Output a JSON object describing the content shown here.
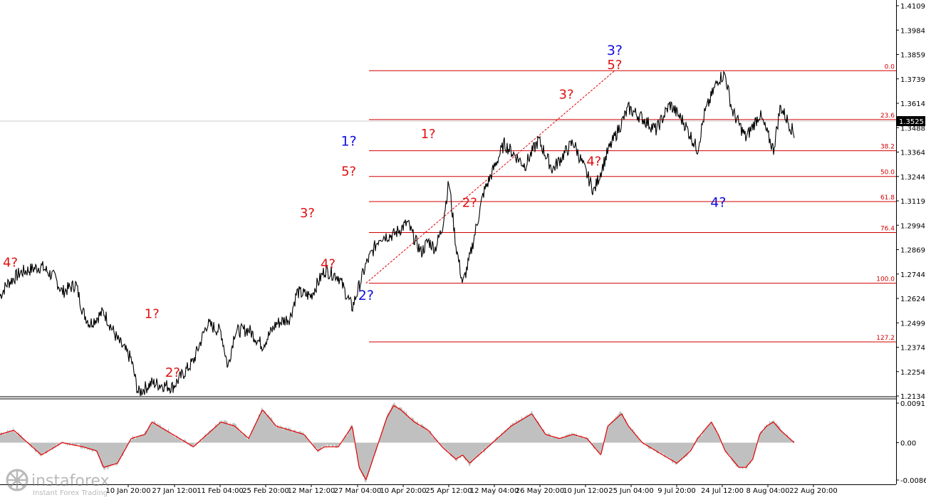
{
  "chart_data": [
    {
      "type": "line",
      "subtype": "price-ohlc",
      "title": "",
      "symbol": "",
      "ylim": [
        1.2134,
        1.4109
      ],
      "y_ticks": [
        "1.4109",
        "1.3984",
        "1.3859",
        "1.3739",
        "1.3614",
        "1.3488",
        "1.3364",
        "1.3244",
        "1.3119",
        "1.2994",
        "1.2869",
        "1.2744",
        "1.2624",
        "1.2499",
        "1.2374",
        "1.2254",
        "1.2134"
      ],
      "x_tick_labels": [
        "10 Jan 20:00",
        "27 Jan 12:00",
        "11 Feb 04:00",
        "25 Feb 20:00",
        "12 Mar 12:00",
        "27 Mar 04:00",
        "10 Apr 20:00",
        "25 Apr 12:00",
        "12 May 04:00",
        "26 May 20:00",
        "10 Jun 12:00",
        "25 Jun 04:00",
        "9 Jul 20:00",
        "24 Jul 12:00",
        "8 Aug 04:00",
        "22 Aug 20:00"
      ],
      "current_price": "1.3525",
      "price_path_index": [
        0,
        1,
        3,
        6,
        8,
        9,
        11,
        12,
        13,
        15,
        17,
        19,
        20,
        22,
        25,
        28,
        30,
        32,
        33,
        34,
        36,
        38,
        40,
        42,
        43,
        45,
        47,
        49,
        51,
        53,
        55,
        57,
        59,
        60,
        61,
        62,
        63,
        64,
        65,
        66,
        67,
        68,
        70,
        73,
        76,
        78,
        80,
        83,
        86,
        88,
        91,
        93,
        95,
        97,
        99,
        101,
        102,
        103,
        104,
        105,
        106,
        108,
        110,
        112,
        113,
        115
      ],
      "price_path_close": [
        1.264,
        1.27,
        1.276,
        1.279,
        1.273,
        1.266,
        1.27,
        1.256,
        1.25,
        1.256,
        1.242,
        1.232,
        1.215,
        1.22,
        1.218,
        1.231,
        1.25,
        1.246,
        1.228,
        1.246,
        1.247,
        1.239,
        1.25,
        1.253,
        1.266,
        1.264,
        1.277,
        1.274,
        1.258,
        1.28,
        1.294,
        1.295,
        1.301,
        1.293,
        1.286,
        1.292,
        1.288,
        1.298,
        1.322,
        1.29,
        1.27,
        1.283,
        1.316,
        1.341,
        1.33,
        1.343,
        1.328,
        1.342,
        1.317,
        1.337,
        1.359,
        1.354,
        1.348,
        1.361,
        1.352,
        1.338,
        1.356,
        1.365,
        1.374,
        1.376,
        1.358,
        1.344,
        1.356,
        1.338,
        1.36,
        1.346
      ],
      "waves": [
        {
          "label": "4?",
          "color": "red",
          "index": 1.5,
          "price": 1.276,
          "pos": "above"
        },
        {
          "label": "1?",
          "color": "red",
          "index": 22,
          "price": 1.25,
          "pos": "above"
        },
        {
          "label": "2?",
          "color": "red",
          "index": 25,
          "price": 1.231,
          "pos": "below"
        },
        {
          "label": "3?",
          "color": "red",
          "index": 44.5,
          "price": 1.301,
          "pos": "above"
        },
        {
          "label": "4?",
          "color": "red",
          "index": 47.5,
          "price": 1.286,
          "pos": "below"
        },
        {
          "label": "1?",
          "color": "blue",
          "index": 50.5,
          "price": 1.33,
          "pos": "above2"
        },
        {
          "label": "5?",
          "color": "red",
          "index": 50.5,
          "price": 1.322,
          "pos": "above"
        },
        {
          "label": "2?",
          "color": "blue",
          "index": 53,
          "price": 1.27,
          "pos": "below"
        },
        {
          "label": "1?",
          "color": "red",
          "index": 62,
          "price": 1.341,
          "pos": "above"
        },
        {
          "label": "2?",
          "color": "red",
          "index": 68,
          "price": 1.317,
          "pos": "below"
        },
        {
          "label": "3?",
          "color": "red",
          "index": 82,
          "price": 1.361,
          "pos": "above"
        },
        {
          "label": "4?",
          "color": "red",
          "index": 86,
          "price": 1.338,
          "pos": "below"
        },
        {
          "label": "3?",
          "color": "blue",
          "index": 89,
          "price": 1.376,
          "pos": "above2"
        },
        {
          "label": "5?",
          "color": "red",
          "index": 89,
          "price": 1.376,
          "pos": "above"
        },
        {
          "label": "4?",
          "color": "blue",
          "index": 104,
          "price": 1.317,
          "pos": "below"
        }
      ],
      "fib_levels": [
        {
          "label": "0.0",
          "price": 1.378
        },
        {
          "label": "23.6",
          "price": 1.3533
        },
        {
          "label": "38.2",
          "price": 1.3375
        },
        {
          "label": "50.0",
          "price": 1.3245
        },
        {
          "label": "61.8",
          "price": 1.3118
        },
        {
          "label": "76.4",
          "price": 1.2961
        },
        {
          "label": "100.0",
          "price": 1.2705
        },
        {
          "label": "127.2",
          "price": 1.2408
        }
      ],
      "trend_line": {
        "from": {
          "index": 53,
          "price": 1.2705
        },
        "to": {
          "index": 89,
          "price": 1.378
        }
      }
    },
    {
      "type": "area",
      "subtype": "oscillator",
      "ylim": [
        -0.00862,
        0.0091
      ],
      "y_ticks": [
        "0.0091",
        "0.00",
        "-0.00862"
      ],
      "osc_path_index": [
        0,
        2,
        4,
        6,
        9,
        12,
        14,
        15,
        17,
        19,
        21,
        22,
        24,
        26,
        28,
        30,
        32,
        34,
        36,
        38,
        39,
        40,
        42,
        44,
        46,
        47,
        49,
        51,
        52,
        53,
        54,
        56,
        57,
        58,
        60,
        62,
        64,
        66,
        67,
        68,
        70,
        72,
        74,
        76,
        77,
        79,
        81,
        83,
        85,
        87,
        88,
        90,
        91,
        93,
        96,
        98,
        100,
        101,
        102,
        103,
        104,
        105,
        106,
        107,
        108,
        109,
        110,
        111,
        112,
        113,
        115
      ],
      "osc_path_value": [
        0.002,
        0.003,
        0.0,
        -0.003,
        0.0,
        -0.001,
        -0.002,
        -0.006,
        -0.005,
        0.001,
        0.002,
        0.005,
        0.003,
        0.001,
        -0.001,
        0.002,
        0.005,
        0.004,
        0.001,
        0.008,
        0.006,
        0.004,
        0.003,
        0.002,
        -0.002,
        -0.001,
        -0.001,
        0.004,
        -0.006,
        -0.009,
        -0.004,
        0.006,
        0.009,
        0.008,
        0.005,
        0.003,
        -0.001,
        -0.004,
        -0.003,
        -0.005,
        -0.002,
        0.001,
        0.004,
        0.006,
        0.007,
        0.002,
        0.001,
        0.002,
        0.001,
        -0.003,
        0.004,
        0.007,
        0.004,
        0.0,
        -0.003,
        -0.005,
        -0.002,
        0.001,
        0.003,
        0.005,
        0.002,
        -0.002,
        -0.004,
        -0.006,
        -0.006,
        -0.004,
        0.002,
        0.004,
        0.005,
        0.003,
        0.0
      ]
    }
  ],
  "brand": {
    "name": "instaforex",
    "tagline": "Instant Forex Trading"
  },
  "colors": {
    "price": "#000000",
    "wave_red": "#e01010",
    "wave_blue": "#1010e0",
    "fib": "#d00000",
    "osc_fill": "#c0c0c0",
    "osc_signal": "#e00000"
  }
}
